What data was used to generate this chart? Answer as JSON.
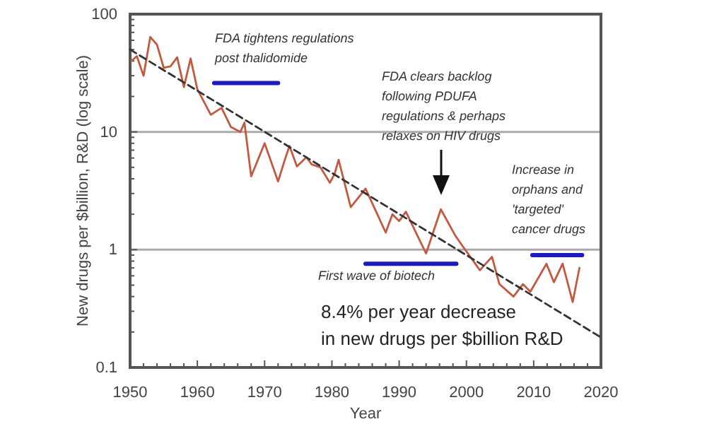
{
  "chart_data": {
    "type": "line",
    "xlabel": "Year",
    "ylabel": "New drugs per $billion, R&D (log scale)",
    "xlim": [
      1950,
      2020
    ],
    "xticks": [
      1950,
      {
        "value": 1952,
        "label": null
      },
      {
        "value": 1954,
        "label": null
      },
      {
        "value": 1956,
        "label": null
      },
      {
        "value": 1958,
        "label": null
      },
      1960,
      {
        "value": 1962,
        "label": null
      },
      {
        "value": 1964,
        "label": null
      },
      {
        "value": 1966,
        "label": null
      },
      {
        "value": 1968,
        "label": null
      },
      1970,
      {
        "value": 1972,
        "label": null
      },
      {
        "value": 1974,
        "label": null
      },
      {
        "value": 1976,
        "label": null
      },
      {
        "value": 1978,
        "label": null
      },
      1980,
      {
        "value": 1982,
        "label": null
      },
      {
        "value": 1984,
        "label": null
      },
      {
        "value": 1986,
        "label": null
      },
      {
        "value": 1988,
        "label": null
      },
      1990,
      {
        "value": 1992,
        "label": null
      },
      {
        "value": 1994,
        "label": null
      },
      {
        "value": 1996,
        "label": null
      },
      {
        "value": 1998,
        "label": null
      },
      2000,
      {
        "value": 2002,
        "label": null
      },
      {
        "value": 2004,
        "label": null
      },
      {
        "value": 2006,
        "label": null
      },
      {
        "value": 2008,
        "label": null
      },
      2010,
      {
        "value": 2012,
        "label": null
      },
      {
        "value": 2014,
        "label": null
      },
      {
        "value": 2016,
        "label": null
      },
      {
        "value": 2018,
        "label": null
      },
      2020
    ],
    "ylim": [
      0.1,
      100
    ],
    "yticks": [
      0.1,
      {
        "value": 0.2,
        "label": null
      },
      {
        "value": 0.3,
        "label": null
      },
      {
        "value": 0.4,
        "label": null
      },
      {
        "value": 0.5,
        "label": null
      },
      {
        "value": 0.6,
        "label": null
      },
      {
        "value": 0.7,
        "label": null
      },
      {
        "value": 0.8,
        "label": null
      },
      {
        "value": 0.9,
        "label": null
      },
      1,
      {
        "value": 2,
        "label": null
      },
      {
        "value": 3,
        "label": null
      },
      {
        "value": 4,
        "label": null
      },
      {
        "value": 5,
        "label": null
      },
      {
        "value": 6,
        "label": null
      },
      {
        "value": 7,
        "label": null
      },
      {
        "value": 8,
        "label": null
      },
      {
        "value": 9,
        "label": null
      },
      10,
      {
        "value": 20,
        "label": null
      },
      {
        "value": 30,
        "label": null
      },
      {
        "value": 40,
        "label": null
      },
      {
        "value": 50,
        "label": null
      },
      {
        "value": 60,
        "label": null
      },
      {
        "value": 70,
        "label": null
      },
      {
        "value": 80,
        "label": null
      },
      {
        "value": 90,
        "label": null
      },
      100
    ],
    "log": "y",
    "grid": "y",
    "marker": "none",
    "series": [
      {
        "color": "#c5593f",
        "line_style": "solid",
        "x": [
          1950.2,
          1951,
          1952,
          1953,
          1954,
          1955,
          1956,
          1957,
          1958,
          1959,
          1960,
          1962,
          1963.6,
          1965,
          1966.4,
          1967,
          1968,
          1970,
          1972,
          1973,
          1973.7,
          1974.8,
          1976.2,
          1977,
          1978.3,
          1979.7,
          1980.4,
          1981,
          1982.8,
          1985,
          1988,
          1989,
          1990,
          1991,
          1994,
          1996.2,
          1998.3,
          1999.3,
          2002,
          2003.8,
          2004.9,
          2007,
          2008.4,
          2009.5,
          2011.9,
          2013,
          2014.3,
          2015.8,
          2016.8
        ],
        "values": [
          40,
          44,
          30,
          64,
          55,
          35,
          36,
          43,
          24,
          42,
          23,
          14,
          16,
          11,
          10,
          12,
          4.2,
          8,
          3.8,
          5.8,
          7.6,
          5.1,
          6.1,
          5.3,
          5,
          3.7,
          4.4,
          5.8,
          2.3,
          3.3,
          1.4,
          2,
          1.75,
          2.1,
          0.93,
          2.2,
          1.33,
          1.1,
          0.67,
          0.87,
          0.51,
          0.4,
          0.51,
          0.44,
          0.76,
          0.53,
          0.76,
          0.36,
          0.7
        ]
      },
      {
        "type": "line",
        "color": "#333333",
        "line_style": "dashed",
        "x": [
          1950,
          2020
        ],
        "values": [
          50,
          0.18
        ]
      },
      {
        "type": "line",
        "color": "#1a1acc",
        "line_style": "solid",
        "x": [
          1962.5,
          1972
        ],
        "values": [
          26,
          26
        ]
      },
      {
        "type": "line",
        "color": "#1a1acc",
        "line_style": "solid",
        "x": [
          1985,
          1998.5
        ],
        "values": [
          0.76,
          0.76
        ]
      },
      {
        "type": "line",
        "color": "#1a1acc",
        "line_style": "solid",
        "x": [
          2009.8,
          2017.2
        ],
        "values": [
          0.9,
          0.9
        ]
      }
    ],
    "annotations": [
      "FDA tightens regulations\npost thalidomide",
      "FDA clears backlog\nfollowing PDUFA\nregulations & perhaps\nrelaxes on HIV drugs",
      "Increase in\norphans and\n'targeted'\ncancer drugs",
      "First wave of biotech",
      "8.4% per year decrease\nin new drugs per $billion R&D"
    ]
  }
}
